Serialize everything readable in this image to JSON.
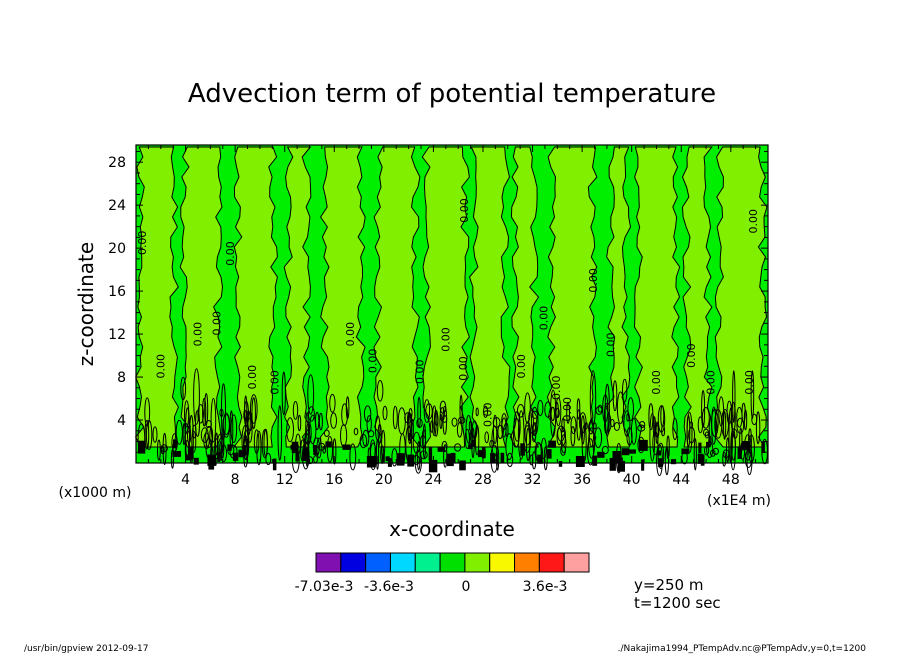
{
  "chart_data": {
    "type": "heatmap",
    "title": "Advection term of potential temperature",
    "xlabel": "x-coordinate",
    "ylabel": "z-coordinate",
    "x_unit_label": "(x1E4 m)",
    "y_unit_label": "(x1000 m)",
    "xlim": [
      0,
      51
    ],
    "ylim": [
      0,
      29.6
    ],
    "x_ticks": [
      4,
      8,
      12,
      16,
      20,
      24,
      28,
      32,
      36,
      40,
      44,
      48
    ],
    "y_ticks": [
      4,
      8,
      12,
      16,
      20,
      24,
      28
    ],
    "x_tick_labels": [
      "4",
      "8",
      "12",
      "16",
      "20",
      "24",
      "28",
      "32",
      "36",
      "40",
      "44",
      "48"
    ],
    "y_tick_labels": [
      "4",
      "8",
      "12",
      "16",
      "20",
      "24",
      "28"
    ],
    "contour_label": "0.00",
    "colorbar": {
      "colors": [
        "#8010b0",
        "#0000e0",
        "#0060ff",
        "#00d8ff",
        "#00f090",
        "#00e000",
        "#80f000",
        "#f8f800",
        "#ff8000",
        "#ff1818",
        "#ffa0a0"
      ],
      "tick_labels": [
        "-7.03e-3",
        "-3.6e-3",
        "0",
        "3.6e-3"
      ]
    },
    "annotations": {
      "y_slice": "y=250 m",
      "time": "t=1200 sec"
    }
  },
  "footer": {
    "left": "/usr/bin/gpview   2012-09-17",
    "right": "./Nakajima1994_PTempAdv.nc@PTempAdv,y=0,t=1200"
  },
  "colors": {
    "background_field": "#00ee00",
    "dominant_field": "#80f000",
    "contour": "#000000"
  }
}
